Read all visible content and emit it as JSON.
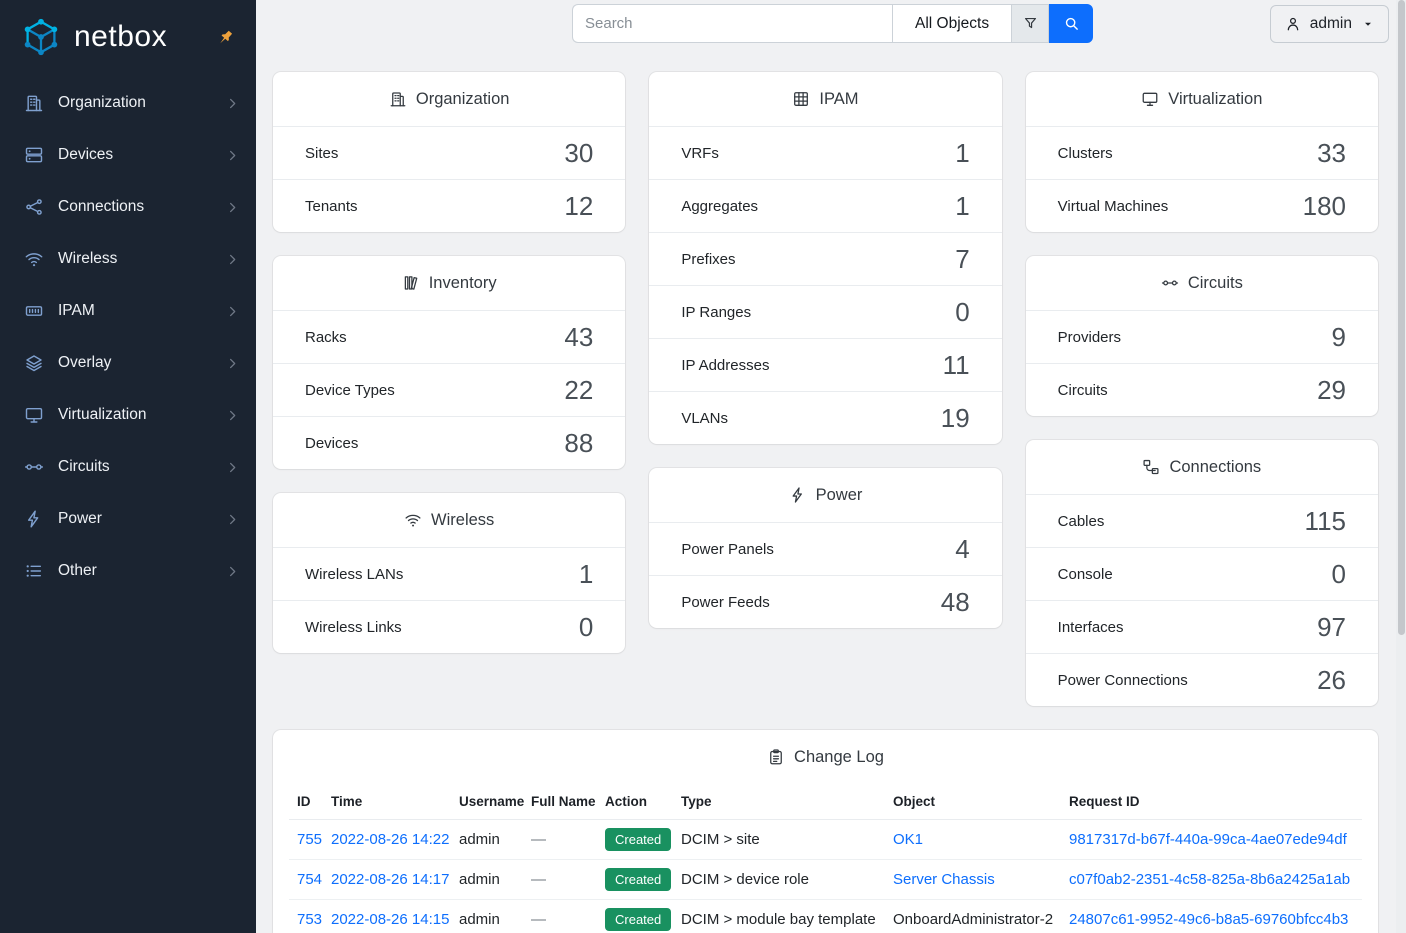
{
  "brand": {
    "name": "netbox"
  },
  "topbar": {
    "search": {
      "placeholder": "Search"
    },
    "object_type_button": "All Objects",
    "user_menu": {
      "label": "admin"
    }
  },
  "sidebar": {
    "items": [
      {
        "label": "Organization",
        "icon": "organization-icon"
      },
      {
        "label": "Devices",
        "icon": "devices-icon"
      },
      {
        "label": "Connections",
        "icon": "connections-icon"
      },
      {
        "label": "Wireless",
        "icon": "wireless-icon"
      },
      {
        "label": "IPAM",
        "icon": "ipam-icon"
      },
      {
        "label": "Overlay",
        "icon": "overlay-icon"
      },
      {
        "label": "Virtualization",
        "icon": "virtualization-icon"
      },
      {
        "label": "Circuits",
        "icon": "circuits-icon"
      },
      {
        "label": "Power",
        "icon": "power-icon"
      },
      {
        "label": "Other",
        "icon": "other-icon"
      }
    ]
  },
  "cards": [
    {
      "title": "Organization",
      "icon": "building-icon",
      "column": 0,
      "rows": [
        {
          "label": "Sites",
          "value": "30"
        },
        {
          "label": "Tenants",
          "value": "12"
        }
      ]
    },
    {
      "title": "Inventory",
      "icon": "inventory-icon",
      "column": 0,
      "rows": [
        {
          "label": "Racks",
          "value": "43"
        },
        {
          "label": "Device Types",
          "value": "22"
        },
        {
          "label": "Devices",
          "value": "88"
        }
      ]
    },
    {
      "title": "Wireless",
      "icon": "wifi-icon",
      "column": 0,
      "rows": [
        {
          "label": "Wireless LANs",
          "value": "1"
        },
        {
          "label": "Wireless Links",
          "value": "0"
        }
      ]
    },
    {
      "title": "IPAM",
      "icon": "grid-icon",
      "column": 1,
      "rows": [
        {
          "label": "VRFs",
          "value": "1"
        },
        {
          "label": "Aggregates",
          "value": "1"
        },
        {
          "label": "Prefixes",
          "value": "7"
        },
        {
          "label": "IP Ranges",
          "value": "0"
        },
        {
          "label": "IP Addresses",
          "value": "11"
        },
        {
          "label": "VLANs",
          "value": "19"
        }
      ]
    },
    {
      "title": "Power",
      "icon": "bolt-icon",
      "column": 1,
      "rows": [
        {
          "label": "Power Panels",
          "value": "4"
        },
        {
          "label": "Power Feeds",
          "value": "48"
        }
      ]
    },
    {
      "title": "Virtualization",
      "icon": "monitor-icon",
      "column": 2,
      "rows": [
        {
          "label": "Clusters",
          "value": "33"
        },
        {
          "label": "Virtual Machines",
          "value": "180"
        }
      ]
    },
    {
      "title": "Circuits",
      "icon": "transit-icon",
      "column": 2,
      "rows": [
        {
          "label": "Providers",
          "value": "9"
        },
        {
          "label": "Circuits",
          "value": "29"
        }
      ]
    },
    {
      "title": "Connections",
      "icon": "cable-icon",
      "column": 2,
      "rows": [
        {
          "label": "Cables",
          "value": "115"
        },
        {
          "label": "Console",
          "value": "0"
        },
        {
          "label": "Interfaces",
          "value": "97"
        },
        {
          "label": "Power Connections",
          "value": "26"
        }
      ]
    }
  ],
  "changelog": {
    "title": "Change Log",
    "icon": "clipboard-icon",
    "columns": [
      "ID",
      "Time",
      "Username",
      "Full Name",
      "Action",
      "Type",
      "Object",
      "Request ID"
    ],
    "rows": [
      {
        "id": "755",
        "time": "2022-08-26 14:22",
        "username": "admin",
        "full_name": "—",
        "action": "Created",
        "type": "DCIM > site",
        "object": "OK1",
        "object_link": true,
        "request_id": "9817317d-b67f-440a-99ca-4ae07ede94df"
      },
      {
        "id": "754",
        "time": "2022-08-26 14:17",
        "username": "admin",
        "full_name": "—",
        "action": "Created",
        "type": "DCIM > device role",
        "object": "Server Chassis",
        "object_link": true,
        "request_id": "c07f0ab2-2351-4c58-825a-8b6a2425a1ab"
      },
      {
        "id": "753",
        "time": "2022-08-26 14:15",
        "username": "admin",
        "full_name": "—",
        "action": "Created",
        "type": "DCIM > module bay template",
        "object": "OnboardAdministrator-2",
        "object_link": false,
        "request_id": "24807c61-9952-49c6-b8a5-69760bfcc4b3"
      }
    ]
  },
  "colors": {
    "accent_blue": "#0d6efd",
    "link_blue": "#0d6efd",
    "success_green": "#199160",
    "sidebar_bg": "#1b2431",
    "pin_orange": "#eda13c",
    "logo_cyan": "#00b2e3",
    "logo_blue": "#0c86c5"
  }
}
